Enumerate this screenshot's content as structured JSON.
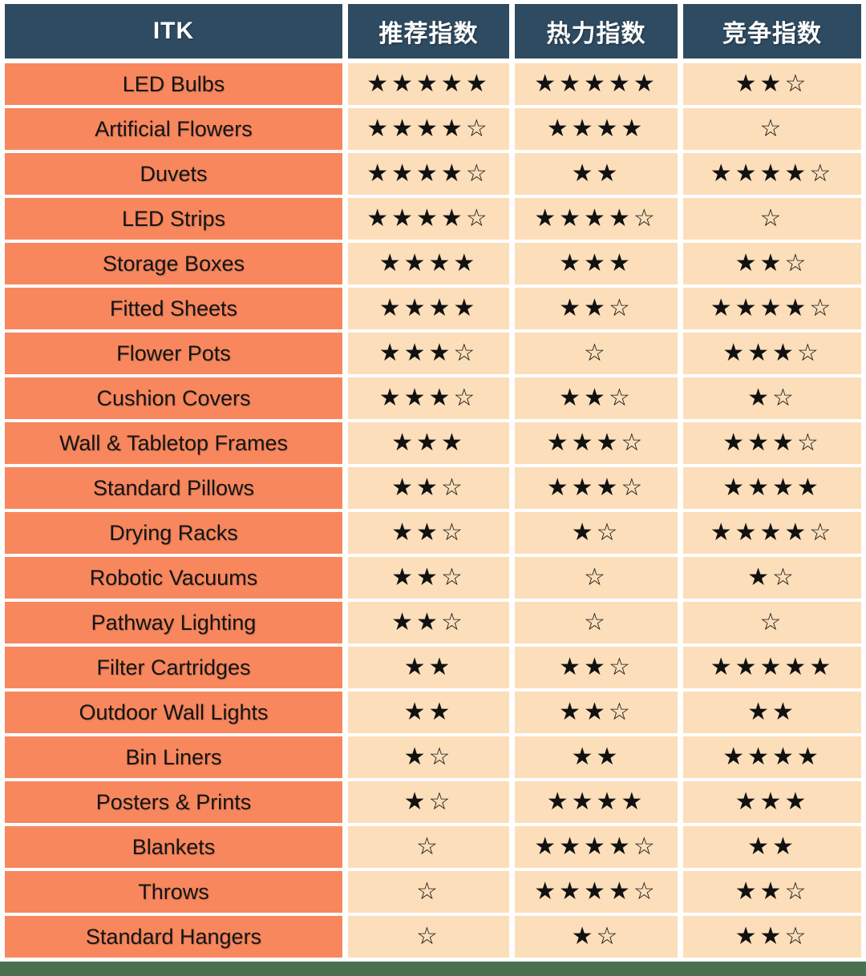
{
  "table": {
    "columns": [
      "ITK",
      "推荐指数",
      "热力指数",
      "竞争指数"
    ],
    "rows": [
      {
        "label": "LED Bulbs",
        "ratings": [
          "★★★★★",
          "★★★★★",
          "★★☆"
        ]
      },
      {
        "label": "Artificial Flowers",
        "ratings": [
          "★★★★☆",
          "★★★★",
          "☆"
        ]
      },
      {
        "label": "Duvets",
        "ratings": [
          "★★★★☆",
          "★★",
          "★★★★☆"
        ]
      },
      {
        "label": "LED Strips",
        "ratings": [
          "★★★★☆",
          "★★★★☆",
          "☆"
        ]
      },
      {
        "label": "Storage Boxes",
        "ratings": [
          "★★★★",
          "★★★",
          "★★☆"
        ]
      },
      {
        "label": "Fitted Sheets",
        "ratings": [
          "★★★★",
          "★★☆",
          "★★★★☆"
        ]
      },
      {
        "label": "Flower Pots",
        "ratings": [
          "★★★☆",
          "☆",
          "★★★☆"
        ]
      },
      {
        "label": "Cushion Covers",
        "ratings": [
          "★★★☆",
          "★★☆",
          "★☆"
        ]
      },
      {
        "label": "Wall & Tabletop Frames",
        "ratings": [
          "★★★",
          "★★★☆",
          "★★★☆"
        ]
      },
      {
        "label": "Standard Pillows",
        "ratings": [
          "★★☆",
          "★★★☆",
          "★★★★"
        ]
      },
      {
        "label": "Drying Racks",
        "ratings": [
          "★★☆",
          "★☆",
          "★★★★☆"
        ]
      },
      {
        "label": "Robotic Vacuums",
        "ratings": [
          "★★☆",
          "☆",
          "★☆"
        ]
      },
      {
        "label": "Pathway Lighting",
        "ratings": [
          "★★☆",
          "☆",
          "☆"
        ]
      },
      {
        "label": "Filter Cartridges",
        "ratings": [
          "★★",
          "★★☆",
          "★★★★★"
        ]
      },
      {
        "label": "Outdoor Wall Lights",
        "ratings": [
          "★★",
          "★★☆",
          "★★"
        ]
      },
      {
        "label": "Bin Liners",
        "ratings": [
          "★☆",
          "★★",
          "★★★★"
        ]
      },
      {
        "label": "Posters & Prints",
        "ratings": [
          "★☆",
          "★★★★",
          "★★★"
        ]
      },
      {
        "label": "Blankets",
        "ratings": [
          "☆",
          "★★★★☆",
          "★★"
        ]
      },
      {
        "label": "Throws",
        "ratings": [
          "☆",
          "★★★★☆",
          "★★☆"
        ]
      },
      {
        "label": "Standard Hangers",
        "ratings": [
          "☆",
          "★☆",
          "★★☆"
        ]
      }
    ]
  },
  "colors": {
    "header_bg": "#2F4B61",
    "label_bg": "#F8875E",
    "rating_bg": "#FCDEBA",
    "bottom_bar": "#4A7050",
    "header_text": "#FFFFFF",
    "star_color": "#111111"
  }
}
